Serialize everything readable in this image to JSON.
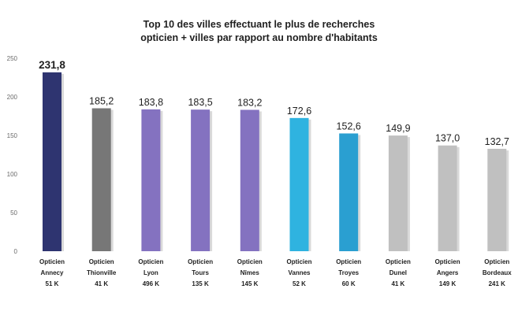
{
  "chart_data": {
    "type": "bar",
    "title": "Top 10 des villes effectuant le plus de recherches",
    "subtitle": "opticien + villes par rapport au nombre d'habitants",
    "xlabel": "",
    "ylabel": "",
    "ylim": [
      0,
      250
    ],
    "yticks": [
      "0",
      "50",
      "100",
      "150",
      "200",
      "250"
    ],
    "grid": false,
    "legend": "none",
    "categories": [
      [
        "Opticien",
        "Annecy",
        "51 K"
      ],
      [
        "Opticien",
        "Thionville",
        "41 K"
      ],
      [
        "Opticien",
        "Lyon",
        "496 K"
      ],
      [
        "Opticien",
        "Tours",
        "135 K"
      ],
      [
        "Opticien",
        "Nîmes",
        "145 K"
      ],
      [
        "Opticien",
        "Vannes",
        "52 K"
      ],
      [
        "Opticien",
        "Troyes",
        "60 K"
      ],
      [
        "Opticien",
        "Dunel",
        "41 K"
      ],
      [
        "Opticien",
        "Angers",
        "149 K"
      ],
      [
        "Opticien",
        "Bordeaux",
        "241 K"
      ]
    ],
    "values": [
      231.8,
      185.2,
      183.8,
      183.5,
      183.2,
      172.6,
      152.6,
      149.9,
      137.0,
      132.7
    ],
    "value_labels": [
      "231,8",
      "185,2",
      "183,8",
      "183,5",
      "183,2",
      "172,6",
      "152,6",
      "149,9",
      "137,0",
      "132,7"
    ],
    "colors": [
      "#2e3470",
      "#777777",
      "#8472c0",
      "#8472c0",
      "#8472c0",
      "#2fb3e0",
      "#2a9fd1",
      "#c0c0c0",
      "#c0c0c0",
      "#c0c0c0"
    ]
  }
}
